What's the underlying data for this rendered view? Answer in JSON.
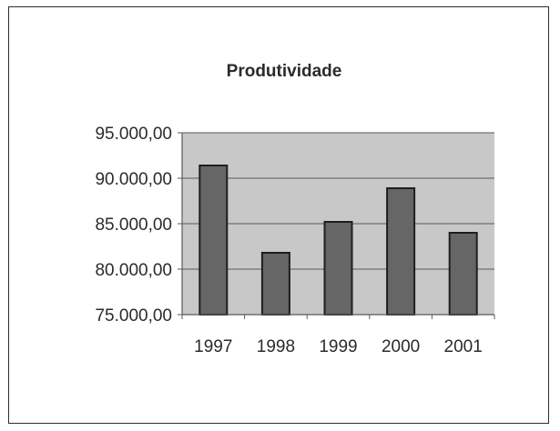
{
  "colors": {
    "plot_background": "#c8c8c8",
    "bar_fill": "#666666",
    "bar_stroke": "#1e1e1e",
    "gridline": "#5a5a5a",
    "text": "#2b2b2b"
  },
  "chart_data": {
    "type": "bar",
    "title": "Produtividade",
    "xlabel": "",
    "ylabel": "",
    "categories": [
      "1997",
      "1998",
      "1999",
      "2000",
      "2001"
    ],
    "values": [
      91400,
      81800,
      85200,
      88900,
      84000
    ],
    "ylim": [
      75000,
      95000
    ],
    "yticks": [
      75000,
      80000,
      85000,
      90000,
      95000
    ],
    "ytick_labels": [
      "75.000,00",
      "80.000,00",
      "85.000,00",
      "90.000,00",
      "95.000,00"
    ],
    "grid": true,
    "legend": "none"
  }
}
